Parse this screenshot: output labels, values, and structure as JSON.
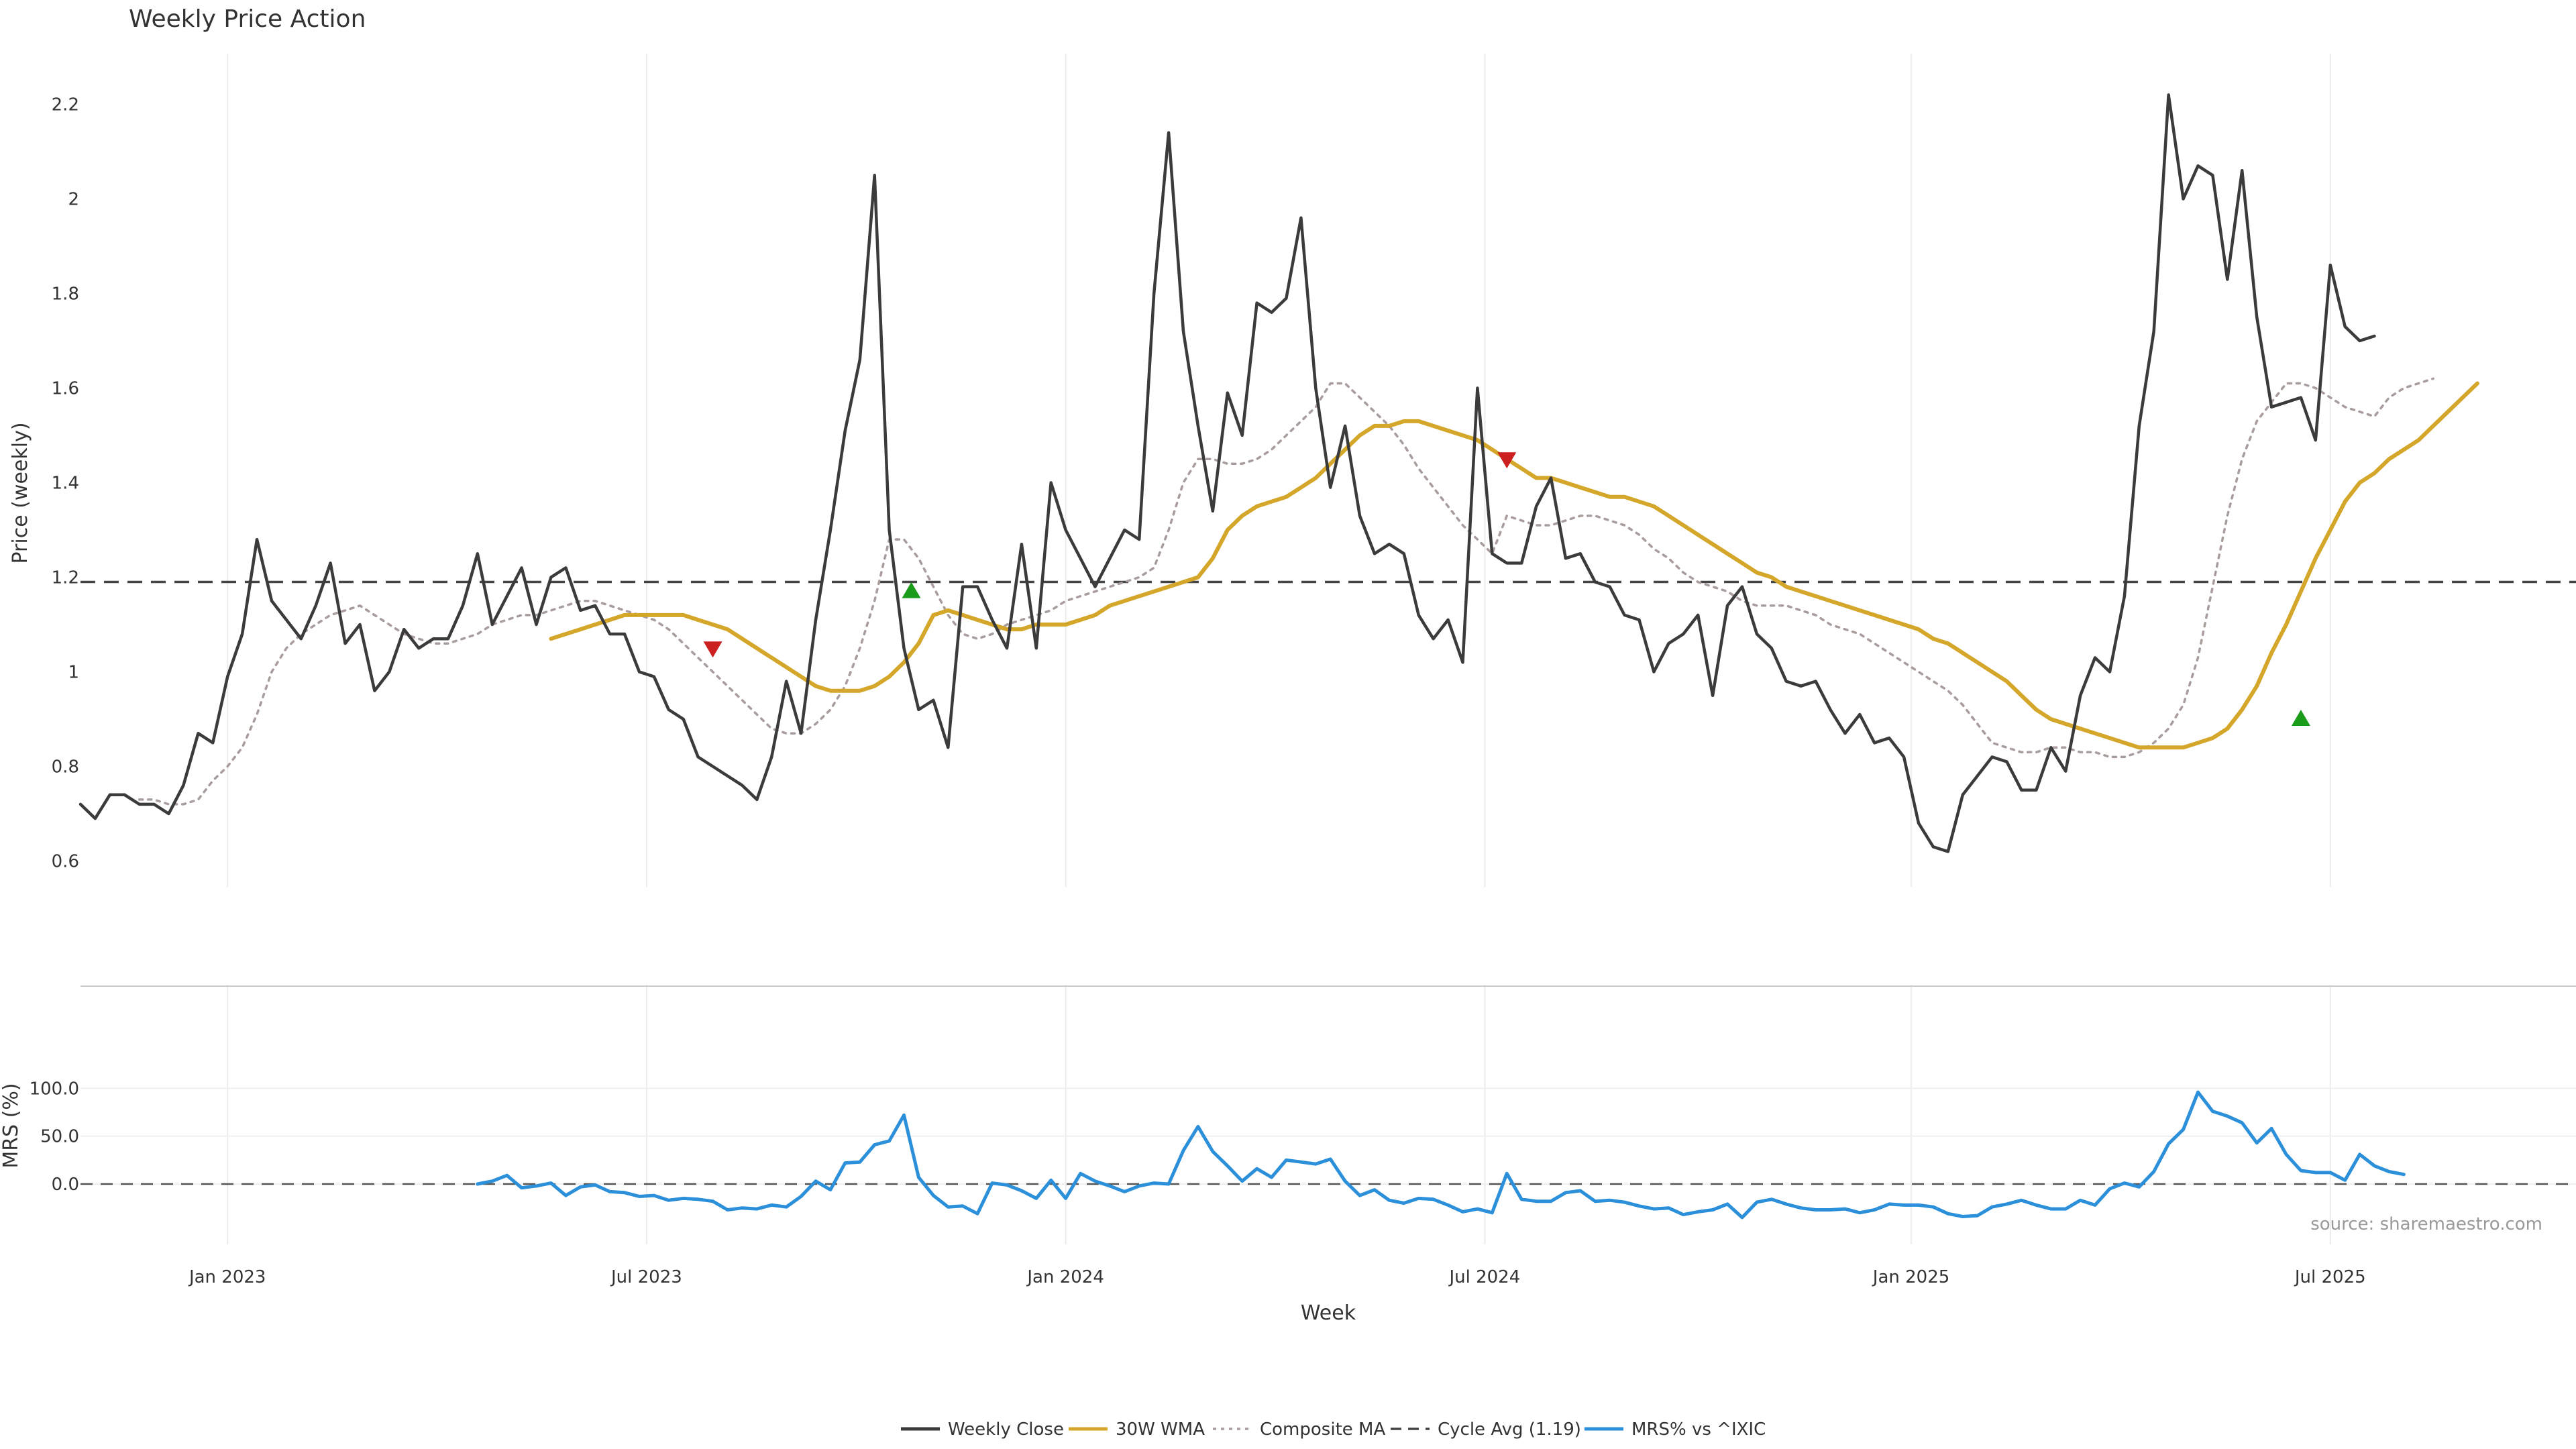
{
  "chart_data": {
    "type": "line",
    "title": "Weekly Price Action",
    "xlabel": "Week",
    "source": "source: sharemaestro.com",
    "legend_position": "bottom-center",
    "x_ticks": [
      "Jan 2023",
      "Jul 2023",
      "Jan 2024",
      "Jul 2024",
      "Jan 2025",
      "Jul 2025"
    ],
    "x_tick_weeks": [
      10,
      38.5,
      67,
      95.5,
      124.5,
      153
    ],
    "price_panel": {
      "ylabel": "Price (weekly)",
      "ylim": [
        0.53,
        2.3
      ],
      "yticks": [
        0.6,
        0.8,
        1,
        1.2,
        1.4,
        1.6,
        1.8,
        2,
        2.2
      ],
      "ytick_labels": [
        "0.6",
        "0.8",
        "1",
        "1.2",
        "1.4",
        "1.6",
        "1.8",
        "2",
        "2.2"
      ],
      "cycle_avg": 1.19,
      "series": [
        {
          "name": "Weekly Close",
          "color": "#3b3b3b",
          "style": "solid",
          "start": 0,
          "values": [
            0.72,
            0.69,
            0.74,
            0.74,
            0.72,
            0.72,
            0.7,
            0.76,
            0.87,
            0.85,
            0.99,
            1.08,
            1.28,
            1.15,
            1.11,
            1.07,
            1.14,
            1.23,
            1.06,
            1.1,
            0.96,
            1.0,
            1.09,
            1.05,
            1.07,
            1.07,
            1.14,
            1.25,
            1.1,
            1.16,
            1.22,
            1.1,
            1.2,
            1.22,
            1.13,
            1.14,
            1.08,
            1.08,
            1.0,
            0.99,
            0.92,
            0.9,
            0.82,
            0.8,
            0.78,
            0.76,
            0.73,
            0.82,
            0.98,
            0.87,
            1.11,
            1.3,
            1.51,
            1.66,
            2.05,
            1.3,
            1.05,
            0.92,
            0.94,
            0.84,
            1.18,
            1.18,
            1.11,
            1.05,
            1.27,
            1.05,
            1.4,
            1.3,
            1.24,
            1.18,
            1.24,
            1.3,
            1.28,
            1.8,
            2.14,
            1.72,
            1.52,
            1.34,
            1.59,
            1.5,
            1.78,
            1.76,
            1.79,
            1.96,
            1.6,
            1.39,
            1.52,
            1.33,
            1.25,
            1.27,
            1.25,
            1.12,
            1.07,
            1.11,
            1.02,
            1.6,
            1.25,
            1.23,
            1.23,
            1.35,
            1.41,
            1.24,
            1.25,
            1.19,
            1.18,
            1.12,
            1.11,
            1.0,
            1.06,
            1.08,
            1.12,
            0.95,
            1.14,
            1.18,
            1.08,
            1.05,
            0.98,
            0.97,
            0.98,
            0.92,
            0.87,
            0.91,
            0.85,
            0.86,
            0.82,
            0.68,
            0.63,
            0.62,
            0.74,
            0.78,
            0.82,
            0.81,
            0.75,
            0.75,
            0.84,
            0.79,
            0.95,
            1.03,
            1.0,
            1.16,
            1.52,
            1.72,
            2.22,
            2.0,
            2.07,
            2.05,
            1.83,
            2.06,
            1.75,
            1.56,
            1.57,
            1.58,
            1.49,
            1.86,
            1.73,
            1.7,
            1.71
          ]
        },
        {
          "name": "30W WMA",
          "color": "#d4a62a",
          "style": "solid",
          "start": 32,
          "values": [
            1.07,
            1.08,
            1.09,
            1.1,
            1.11,
            1.12,
            1.12,
            1.12,
            1.12,
            1.12,
            1.11,
            1.1,
            1.09,
            1.07,
            1.05,
            1.03,
            1.01,
            0.99,
            0.97,
            0.96,
            0.96,
            0.96,
            0.97,
            0.99,
            1.02,
            1.06,
            1.12,
            1.13,
            1.12,
            1.11,
            1.1,
            1.09,
            1.09,
            1.1,
            1.1,
            1.1,
            1.11,
            1.12,
            1.14,
            1.15,
            1.16,
            1.17,
            1.18,
            1.19,
            1.2,
            1.24,
            1.3,
            1.33,
            1.35,
            1.36,
            1.37,
            1.39,
            1.41,
            1.44,
            1.47,
            1.5,
            1.52,
            1.52,
            1.53,
            1.53,
            1.52,
            1.51,
            1.5,
            1.49,
            1.47,
            1.45,
            1.43,
            1.41,
            1.41,
            1.4,
            1.39,
            1.38,
            1.37,
            1.37,
            1.36,
            1.35,
            1.33,
            1.31,
            1.29,
            1.27,
            1.25,
            1.23,
            1.21,
            1.2,
            1.18,
            1.17,
            1.16,
            1.15,
            1.14,
            1.13,
            1.12,
            1.11,
            1.1,
            1.09,
            1.07,
            1.06,
            1.04,
            1.02,
            1.0,
            0.98,
            0.95,
            0.92,
            0.9,
            0.89,
            0.88,
            0.87,
            0.86,
            0.85,
            0.84,
            0.84,
            0.84,
            0.84,
            0.85,
            0.86,
            0.88,
            0.92,
            0.97,
            1.04,
            1.1,
            1.17,
            1.24,
            1.3,
            1.36,
            1.4,
            1.42,
            1.45,
            1.47,
            1.49,
            1.52,
            1.55,
            1.58,
            1.61
          ]
        },
        {
          "name": "Composite MA",
          "color": "#a89c9c",
          "style": "dotted",
          "start": 4,
          "values": [
            0.73,
            0.73,
            0.72,
            0.72,
            0.73,
            0.77,
            0.8,
            0.84,
            0.91,
            1.0,
            1.05,
            1.08,
            1.1,
            1.12,
            1.13,
            1.14,
            1.12,
            1.1,
            1.08,
            1.07,
            1.06,
            1.06,
            1.07,
            1.08,
            1.1,
            1.11,
            1.12,
            1.12,
            1.13,
            1.14,
            1.15,
            1.15,
            1.14,
            1.13,
            1.12,
            1.11,
            1.09,
            1.06,
            1.03,
            1.0,
            0.97,
            0.94,
            0.91,
            0.88,
            0.87,
            0.87,
            0.89,
            0.92,
            0.97,
            1.05,
            1.15,
            1.28,
            1.28,
            1.24,
            1.18,
            1.12,
            1.08,
            1.07,
            1.08,
            1.1,
            1.11,
            1.12,
            1.13,
            1.15,
            1.16,
            1.17,
            1.18,
            1.19,
            1.2,
            1.22,
            1.3,
            1.4,
            1.45,
            1.45,
            1.44,
            1.44,
            1.45,
            1.47,
            1.5,
            1.53,
            1.56,
            1.61,
            1.61,
            1.58,
            1.55,
            1.52,
            1.48,
            1.43,
            1.39,
            1.35,
            1.31,
            1.28,
            1.25,
            1.33,
            1.32,
            1.31,
            1.31,
            1.32,
            1.33,
            1.33,
            1.32,
            1.31,
            1.29,
            1.26,
            1.24,
            1.21,
            1.19,
            1.18,
            1.17,
            1.15,
            1.14,
            1.14,
            1.14,
            1.13,
            1.12,
            1.1,
            1.09,
            1.08,
            1.06,
            1.04,
            1.02,
            1.0,
            0.98,
            0.96,
            0.93,
            0.89,
            0.85,
            0.84,
            0.83,
            0.83,
            0.84,
            0.84,
            0.83,
            0.83,
            0.82,
            0.82,
            0.83,
            0.85,
            0.88,
            0.93,
            1.03,
            1.18,
            1.33,
            1.45,
            1.53,
            1.57,
            1.61,
            1.61,
            1.6,
            1.58,
            1.56,
            1.55,
            1.54,
            1.58,
            1.6,
            1.61,
            1.62
          ]
        }
      ],
      "signals": [
        {
          "type": "sell",
          "x": 43,
          "y": 1.05,
          "color": "#cc1f1f"
        },
        {
          "type": "buy",
          "x": 56.5,
          "y": 1.17,
          "color": "#1a9c1a"
        },
        {
          "type": "sell",
          "x": 97,
          "y": 1.45,
          "color": "#cc1f1f"
        },
        {
          "type": "buy",
          "x": 151,
          "y": 0.9,
          "color": "#1a9c1a"
        }
      ]
    },
    "mrs_panel": {
      "ylabel": "MRS (%)",
      "ylim": [
        -38,
        102
      ],
      "yticks": [
        0,
        50,
        100
      ],
      "ytick_labels": [
        "0.0",
        "50.0",
        "100.0"
      ],
      "zero_line": 0,
      "series": [
        {
          "name": "MRS% vs ^IXIC",
          "color": "#2b8fd9",
          "start": 27,
          "values": [
            0,
            3,
            9,
            -4,
            -2,
            1,
            -12,
            -3,
            -1,
            -8,
            -9,
            -13,
            -12,
            -17,
            -15,
            -16,
            -18,
            -27,
            -25,
            -26,
            -22,
            -24,
            -13,
            3,
            -6,
            22,
            23,
            41,
            45,
            72,
            7,
            -12,
            -24,
            -23,
            -31,
            1,
            -1,
            -7,
            -15,
            4,
            -15,
            11,
            3,
            -2,
            -8,
            -2,
            1,
            0,
            35,
            60,
            34,
            19,
            3,
            16,
            7,
            25,
            23,
            21,
            26,
            3,
            -12,
            -6,
            -17,
            -20,
            -15,
            -16,
            -22,
            -29,
            -26,
            -30,
            11,
            -16,
            -18,
            -18,
            -9,
            -7,
            -18,
            -17,
            -19,
            -23,
            -26,
            -25,
            -32,
            -29,
            -27,
            -21,
            -35,
            -19,
            -16,
            -21,
            -25,
            -27,
            -27,
            -26,
            -30,
            -27,
            -21,
            -22,
            -22,
            -24,
            -31,
            -34,
            -33,
            -24,
            -21,
            -17,
            -22,
            -26,
            -26,
            -17,
            -22,
            -5,
            1,
            -3,
            13,
            42,
            57,
            96,
            76,
            71,
            64,
            43,
            58,
            31,
            14,
            12,
            12,
            4,
            31,
            19,
            13,
            10
          ]
        }
      ]
    },
    "legend": [
      {
        "label": "Weekly Close",
        "color": "#3b3b3b",
        "style": "solid"
      },
      {
        "label": "30W WMA",
        "color": "#d4a62a",
        "style": "solid"
      },
      {
        "label": "Composite MA",
        "color": "#a89c9c",
        "style": "dotted"
      },
      {
        "label": "Cycle Avg (1.19)",
        "color": "#444444",
        "style": "dashed"
      },
      {
        "label": "MRS% vs ^IXIC",
        "color": "#2b8fd9",
        "style": "solid"
      }
    ]
  }
}
